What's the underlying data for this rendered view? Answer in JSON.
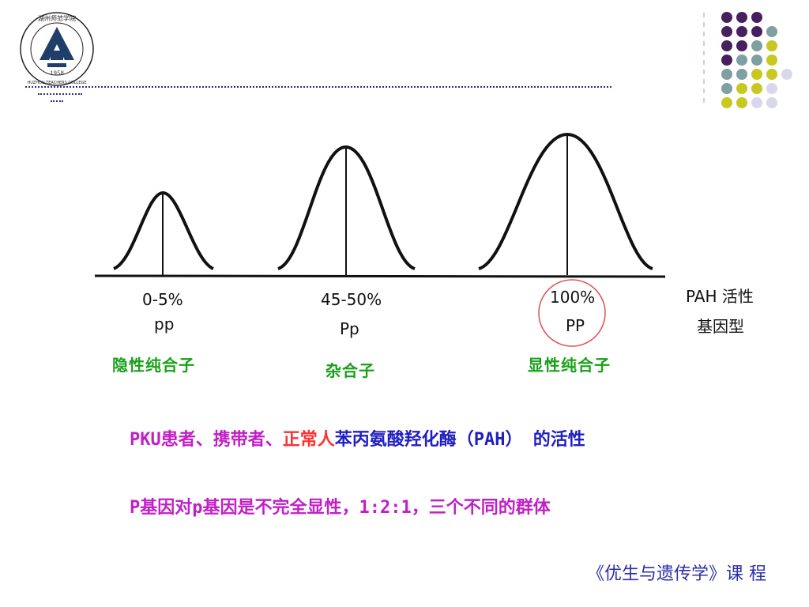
{
  "logo": {
    "name": "湖州师范学院",
    "english": "HUZHOU TEACHERS COLLEGE",
    "year": "1958"
  },
  "figure": {
    "curves": [
      {
        "activity": "0-5%",
        "genotype": "pp",
        "label": "隐性纯合子"
      },
      {
        "activity": "45-50%",
        "genotype": "Pp",
        "label": "杂合子"
      },
      {
        "activity": "100%",
        "genotype": "PP",
        "label": "显性纯合子"
      }
    ],
    "axis_label": "PAH 活性",
    "genotype_label": "基因型"
  },
  "caption": {
    "line1": [
      {
        "text": "PKU患者、携带者、",
        "color": "#c21ec8"
      },
      {
        "text": "正常人",
        "color": "#ff3030"
      },
      {
        "text": "苯丙氨酸羟化酶（PAH） 的活性",
        "color": "#2020c0"
      }
    ],
    "line2": "P基因对p基因是不完全显性，1:2:1，三个不同的群体"
  },
  "course": "《优生与遗传学》课  程",
  "colors": {
    "dark_purple": "#46205f",
    "teal": "#7ea0a0",
    "yellow_green": "#c8c820",
    "lavender": "#d8d8ec",
    "nav_blue": "#2e2a8a",
    "green_label": "#18a018",
    "magenta": "#c21ec8",
    "red": "#ff3030",
    "blue": "#2020c0"
  }
}
